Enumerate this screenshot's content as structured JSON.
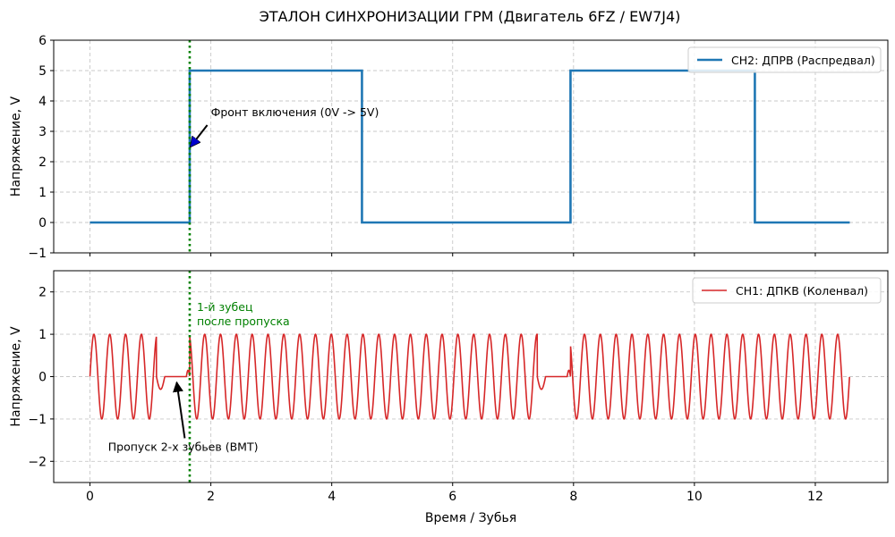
{
  "chart_data": [
    {
      "id": "top",
      "type": "line",
      "title": "ЭТАЛОН СИНХРОНИЗАЦИИ ГРМ (Двигатель 6FZ / EW7J4)",
      "xlabel": "",
      "ylabel": "Напряжение, V",
      "xlim": [
        -0.6,
        13.2
      ],
      "ylim": [
        -1,
        6
      ],
      "yticks": [
        -1,
        0,
        1,
        2,
        3,
        4,
        5,
        6
      ],
      "xticks": [
        0,
        2,
        4,
        6,
        8,
        10,
        12
      ],
      "show_x_tick_labels": false,
      "grid": true,
      "legend_position": "top-right",
      "series": [
        {
          "name": "CH2: ДПРВ (Распредвал)",
          "color": "#1f77b4",
          "x": [
            0,
            1.65,
            1.65,
            4.5,
            4.5,
            7.95,
            7.95,
            11.0,
            11.0,
            12.57
          ],
          "y": [
            0,
            0,
            5,
            5,
            0,
            0,
            5,
            5,
            0,
            0
          ]
        }
      ],
      "vline": {
        "x": 1.65,
        "color": "#008000"
      },
      "annotations": [
        {
          "text": "Фронт включения (0V -> 5V)",
          "x_text": 2.0,
          "y_text": 3.5,
          "x_point": 1.65,
          "y_point": 2.5
        }
      ]
    },
    {
      "id": "bottom",
      "type": "line",
      "title": "",
      "xlabel": "Время / Зубья",
      "ylabel": "Напряжение, V",
      "xlim": [
        -0.6,
        13.2
      ],
      "ylim": [
        -2.5,
        2.5
      ],
      "yticks": [
        -2,
        -1,
        0,
        1,
        2
      ],
      "xticks": [
        0,
        2,
        4,
        6,
        8,
        10,
        12
      ],
      "show_x_tick_labels": true,
      "grid": true,
      "legend_position": "top-right",
      "series": [
        {
          "name": "CH1: ДПКВ (Коленвал)",
          "color": "#d62728",
          "period": 0.2618,
          "amplitude": 1,
          "x_max": 12.566,
          "missing_teeth_gaps": [
            [
              1.1,
              1.65
            ],
            [
              7.4,
              7.95
            ]
          ]
        }
      ],
      "vline": {
        "x": 1.65,
        "color": "#008000",
        "label": [
          "1-й зубец",
          "после пропуска"
        ]
      },
      "annotations": [
        {
          "text": "Пропуск 2-х зубьев (ВМТ)",
          "x_text": 0.3,
          "y_text": -1.75,
          "x_point": 1.42,
          "y_point": -0.05
        }
      ]
    }
  ]
}
